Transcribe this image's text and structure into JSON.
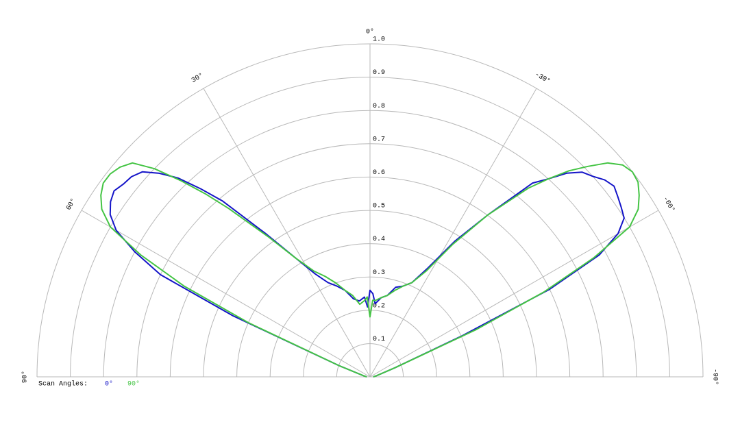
{
  "chart_data": {
    "type": "polar",
    "legend_title": "Scan Angles:",
    "rlim": [
      0,
      1
    ],
    "rticks": [
      0.1,
      0.2,
      0.3,
      0.4,
      0.5,
      0.6,
      0.7,
      0.8,
      0.9,
      {
        "value": 1,
        "label": "1.0"
      }
    ],
    "thetaticks": [
      {
        "value": 90,
        "label": "90°"
      },
      {
        "value": 60,
        "label": "60°"
      },
      {
        "value": 30,
        "label": "30°"
      },
      {
        "value": 0,
        "label": "0°"
      },
      {
        "value": -30,
        "label": "-30°"
      },
      {
        "value": -60,
        "label": "-60°"
      },
      {
        "value": -90,
        "label": "-90°"
      }
    ],
    "grid": true,
    "theta": [
      -90,
      -80,
      -70,
      -66,
      -64,
      -62,
      -60,
      -58,
      -56,
      -54,
      -52,
      -50,
      -48,
      -46,
      -44,
      -42,
      -40,
      -36,
      -32,
      -28,
      -24,
      -20,
      -16,
      -12,
      -8,
      -4,
      -2,
      0,
      2,
      4,
      8,
      12,
      16,
      20,
      24,
      28,
      32,
      36,
      40,
      42,
      44,
      46,
      48,
      50,
      52,
      54,
      56,
      58,
      60,
      62,
      64,
      66,
      70,
      80,
      90
    ],
    "series": [
      {
        "name": "0°",
        "color": "#1414c8",
        "values": [
          0.01,
          0.02,
          0.08,
          0.3,
          0.6,
          0.78,
          0.86,
          0.9,
          0.91,
          0.92,
          0.93,
          0.92,
          0.9,
          0.885,
          0.85,
          0.8,
          0.76,
          0.6,
          0.48,
          0.37,
          0.31,
          0.29,
          0.28,
          0.25,
          0.24,
          0.22,
          0.25,
          0.26,
          0.21,
          0.24,
          0.23,
          0.24,
          0.27,
          0.29,
          0.31,
          0.35,
          0.42,
          0.53,
          0.69,
          0.76,
          0.83,
          0.88,
          0.92,
          0.935,
          0.94,
          0.95,
          0.94,
          0.92,
          0.88,
          0.8,
          0.7,
          0.45,
          0.1,
          0.02,
          0.01
        ]
      },
      {
        "name": "90°",
        "color": "#44c444",
        "values": [
          0.01,
          0.02,
          0.08,
          0.35,
          0.58,
          0.76,
          0.9,
          0.95,
          0.975,
          0.995,
          1.0,
          0.99,
          0.96,
          0.91,
          0.86,
          0.8,
          0.74,
          0.6,
          0.47,
          0.36,
          0.31,
          0.29,
          0.27,
          0.25,
          0.24,
          0.23,
          0.23,
          0.18,
          0.24,
          0.23,
          0.22,
          0.25,
          0.27,
          0.3,
          0.33,
          0.36,
          0.42,
          0.52,
          0.66,
          0.74,
          0.82,
          0.9,
          0.96,
          0.98,
          0.99,
          0.99,
          0.975,
          0.95,
          0.9,
          0.78,
          0.62,
          0.4,
          0.1,
          0.02,
          0.01
        ]
      }
    ]
  }
}
